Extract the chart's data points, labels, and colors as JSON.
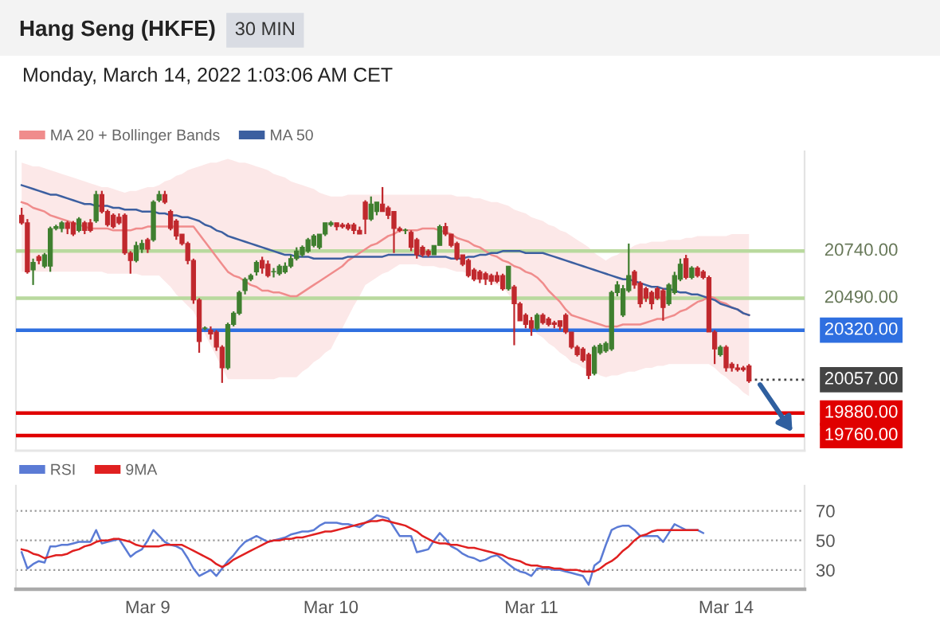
{
  "chart_data": [
    {
      "type": "candlestick",
      "title": "Hang Seng (HKFE)",
      "subtitle": "Monday, March 14, 2022 1:03:06 AM CET",
      "annotations": [
        "30 MIN"
      ],
      "categories": [
        null,
        null,
        null,
        null,
        null,
        null,
        null,
        null,
        null,
        null,
        null,
        null,
        null,
        null,
        null,
        null,
        null,
        null,
        null,
        null,
        null,
        null,
        null,
        null,
        null,
        null,
        null,
        null,
        null,
        null,
        null,
        null,
        null,
        null,
        null,
        null,
        null,
        null,
        null,
        null,
        null,
        null,
        null,
        null,
        null,
        null,
        null,
        null,
        null,
        null,
        null,
        null,
        null,
        null,
        null,
        null,
        null,
        null,
        null,
        null,
        null,
        null,
        null,
        null,
        null,
        null,
        null,
        null,
        null,
        null,
        null,
        null,
        null,
        null,
        null,
        null,
        null,
        null,
        null,
        null,
        null,
        null,
        null,
        null,
        null,
        null,
        null,
        null,
        null,
        null,
        null,
        null,
        null,
        null,
        null,
        null,
        null,
        null,
        null,
        null,
        null,
        null,
        null,
        null,
        null,
        null,
        null,
        null,
        null,
        null,
        null,
        null,
        null,
        null,
        null,
        null,
        null,
        null,
        null,
        null,
        null,
        null,
        null,
        null,
        null,
        null,
        null,
        null
      ],
      "ohlc": [
        [
          20930,
          20970,
          20880,
          20890
        ],
        [
          20890,
          20910,
          20620,
          20630
        ],
        [
          20640,
          20700,
          20560,
          20680
        ],
        [
          20710,
          20720,
          20670,
          20690
        ],
        [
          20660,
          20730,
          20650,
          20720
        ],
        [
          20660,
          20870,
          20630,
          20860
        ],
        [
          20860,
          20880,
          20850,
          20870
        ],
        [
          20860,
          20900,
          20840,
          20890
        ],
        [
          20890,
          20900,
          20830,
          20860
        ],
        [
          20890,
          20900,
          20820,
          20830
        ],
        [
          20850,
          20920,
          20840,
          20910
        ],
        [
          20890,
          20900,
          20830,
          20850
        ],
        [
          20890,
          20910,
          20840,
          20850
        ],
        [
          20900,
          21060,
          20890,
          21040
        ],
        [
          21040,
          21060,
          20940,
          20950
        ],
        [
          20950,
          20960,
          20870,
          20880
        ],
        [
          20930,
          20940,
          20860,
          20870
        ],
        [
          20920,
          20940,
          20880,
          20890
        ],
        [
          20930,
          20940,
          20720,
          20730
        ],
        [
          20730,
          20740,
          20620,
          20690
        ],
        [
          20690,
          20790,
          20680,
          20770
        ],
        [
          20750,
          20800,
          20730,
          20780
        ],
        [
          20800,
          20810,
          20730,
          20750
        ],
        [
          20800,
          21010,
          20790,
          21000
        ],
        [
          21010,
          21060,
          21000,
          21040
        ],
        [
          21040,
          21060,
          20990,
          21000
        ],
        [
          20950,
          20960,
          20850,
          20860
        ],
        [
          20900,
          20910,
          20800,
          20820
        ],
        [
          20830,
          20830,
          20770,
          20780
        ],
        [
          20780,
          20790,
          20670,
          20690
        ],
        [
          20690,
          20700,
          20460,
          20480
        ],
        [
          20480,
          20490,
          20200,
          20260
        ],
        [
          20330,
          20340,
          20320,
          20330
        ],
        [
          20320,
          20340,
          20270,
          20300
        ],
        [
          20310,
          20320,
          20210,
          20230
        ],
        [
          20230,
          20240,
          20040,
          20120
        ],
        [
          20120,
          20360,
          20110,
          20350
        ],
        [
          20350,
          20420,
          20340,
          20410
        ],
        [
          20410,
          20530,
          20400,
          20520
        ],
        [
          20530,
          20600,
          20510,
          20590
        ],
        [
          20590,
          20620,
          20580,
          20610
        ],
        [
          20630,
          20690,
          20610,
          20680
        ],
        [
          20690,
          20710,
          20620,
          20650
        ],
        [
          20670,
          20690,
          20600,
          20610
        ],
        [
          20630,
          20650,
          20600,
          20630
        ],
        [
          20620,
          20670,
          20610,
          20660
        ],
        [
          20630,
          20680,
          20620,
          20660
        ],
        [
          20660,
          20720,
          20650,
          20700
        ],
        [
          20700,
          20760,
          20690,
          20740
        ],
        [
          20720,
          20770,
          20710,
          20760
        ],
        [
          20740,
          20810,
          20730,
          20800
        ],
        [
          20770,
          20830,
          20760,
          20820
        ],
        [
          20760,
          20830,
          20750,
          20830
        ],
        [
          20830,
          20890,
          20820,
          20890
        ],
        [
          20880,
          20900,
          20870,
          20890
        ],
        [
          20890,
          20890,
          20850,
          20870
        ],
        [
          20880,
          20890,
          20860,
          20870
        ],
        [
          20880,
          20890,
          20850,
          20860
        ],
        [
          20880,
          20890,
          20830,
          20850
        ],
        [
          20850,
          20870,
          20830,
          20830
        ],
        [
          21000,
          21010,
          20830,
          20910
        ],
        [
          20910,
          21030,
          20900,
          20990
        ],
        [
          20950,
          21000,
          20930,
          21000
        ],
        [
          20990,
          21080,
          20950,
          20950
        ],
        [
          20970,
          20980,
          20910,
          20930
        ],
        [
          20950,
          20950,
          20730,
          20860
        ],
        [
          20860,
          20870,
          20840,
          20850
        ],
        [
          20850,
          20860,
          20830,
          20850
        ],
        [
          20840,
          20850,
          20740,
          20760
        ],
        [
          20800,
          20810,
          20700,
          20720
        ],
        [
          20760,
          20770,
          20710,
          20720
        ],
        [
          20740,
          20750,
          20710,
          20720
        ],
        [
          20720,
          20770,
          20720,
          20770
        ],
        [
          20770,
          20880,
          20770,
          20870
        ],
        [
          20870,
          20890,
          20820,
          20830
        ],
        [
          20830,
          20830,
          20760,
          20770
        ],
        [
          20780,
          20790,
          20690,
          20700
        ],
        [
          20720,
          20720,
          20660,
          20670
        ],
        [
          20690,
          20700,
          20600,
          20610
        ],
        [
          20640,
          20650,
          20580,
          20590
        ],
        [
          20630,
          20640,
          20570,
          20590
        ],
        [
          20620,
          20630,
          20560,
          20590
        ],
        [
          20610,
          20620,
          20560,
          20580
        ],
        [
          20610,
          20630,
          20570,
          20580
        ],
        [
          20610,
          20620,
          20530,
          20540
        ],
        [
          20540,
          20660,
          20530,
          20660
        ],
        [
          20550,
          20560,
          20240,
          20460
        ],
        [
          20460,
          20470,
          20370,
          20370
        ],
        [
          20400,
          20410,
          20330,
          20350
        ],
        [
          20370,
          20390,
          20290,
          20330
        ],
        [
          20330,
          20410,
          20320,
          20400
        ],
        [
          20400,
          20410,
          20350,
          20360
        ],
        [
          20380,
          20390,
          20340,
          20350
        ],
        [
          20360,
          20370,
          20330,
          20350
        ],
        [
          20370,
          20370,
          20320,
          20340
        ],
        [
          20400,
          20410,
          20300,
          20310
        ],
        [
          20310,
          20310,
          20220,
          20230
        ],
        [
          20230,
          20240,
          20180,
          20190
        ],
        [
          20220,
          20230,
          20150,
          20160
        ],
        [
          20190,
          20200,
          20060,
          20080
        ],
        [
          20090,
          20240,
          20080,
          20230
        ],
        [
          20200,
          20250,
          20190,
          20240
        ],
        [
          20210,
          20260,
          20200,
          20250
        ],
        [
          20220,
          20530,
          20210,
          20520
        ],
        [
          20520,
          20580,
          20500,
          20560
        ],
        [
          20400,
          20560,
          20390,
          20540
        ],
        [
          20530,
          20780,
          20520,
          20610
        ],
        [
          20630,
          20640,
          20540,
          20560
        ],
        [
          20570,
          20580,
          20440,
          20460
        ],
        [
          20540,
          20550,
          20470,
          20490
        ],
        [
          20520,
          20530,
          20430,
          20460
        ],
        [
          20540,
          20550,
          20480,
          20490
        ],
        [
          20530,
          20540,
          20370,
          20440
        ],
        [
          20460,
          20570,
          20450,
          20560
        ],
        [
          20520,
          20630,
          20510,
          20610
        ],
        [
          20590,
          20700,
          20580,
          20670
        ],
        [
          20700,
          20720,
          20590,
          20600
        ],
        [
          20600,
          20660,
          20590,
          20650
        ],
        [
          20650,
          20660,
          20600,
          20610
        ],
        [
          20630,
          20640,
          20590,
          20600
        ],
        [
          20600,
          20610,
          20310,
          20310
        ],
        [
          20310,
          20320,
          20140,
          20220
        ],
        [
          20190,
          20240,
          20180,
          20230
        ],
        [
          20230,
          20240,
          20100,
          20120
        ],
        [
          20140,
          20150,
          20100,
          20120
        ],
        [
          20120,
          20140,
          20100,
          20110
        ],
        [
          20120,
          20130,
          20100,
          20110
        ],
        [
          20130,
          20140,
          20040,
          20050
        ]
      ],
      "colors": [
        "#c0282d",
        "#c0282d",
        "#3f7f2f",
        "#c0282d",
        "#3f7f2f",
        "#3f7f2f",
        "#3f7f2f",
        "#3f7f2f",
        "#c0282d",
        "#c0282d",
        "#3f7f2f",
        "#c0282d",
        "#c0282d",
        "#3f7f2f",
        "#c0282d",
        "#c0282d",
        "#c0282d",
        "#c0282d",
        "#c0282d",
        "#c0282d",
        "#3f7f2f",
        "#3f7f2f",
        "#c0282d",
        "#3f7f2f",
        "#3f7f2f",
        "#c0282d",
        "#c0282d",
        "#c0282d",
        "#c0282d",
        "#c0282d",
        "#c0282d",
        "#c0282d",
        "#3f7f2f",
        "#c0282d",
        "#c0282d",
        "#c0282d",
        "#3f7f2f",
        "#3f7f2f",
        "#3f7f2f",
        "#3f7f2f",
        "#3f7f2f",
        "#3f7f2f",
        "#c0282d",
        "#c0282d",
        "#3f7f2f",
        "#3f7f2f",
        "#3f7f2f",
        "#3f7f2f",
        "#3f7f2f",
        "#3f7f2f",
        "#3f7f2f",
        "#3f7f2f",
        "#3f7f2f",
        "#3f7f2f",
        "#3f7f2f",
        "#c0282d",
        "#c0282d",
        "#c0282d",
        "#c0282d",
        "#c0282d",
        "#c0282d",
        "#3f7f2f",
        "#3f7f2f",
        "#c0282d",
        "#c0282d",
        "#c0282d",
        "#c0282d",
        "#3f7f2f",
        "#c0282d",
        "#c0282d",
        "#c0282d",
        "#c0282d",
        "#3f7f2f",
        "#3f7f2f",
        "#c0282d",
        "#c0282d",
        "#c0282d",
        "#c0282d",
        "#c0282d",
        "#c0282d",
        "#c0282d",
        "#c0282d",
        "#c0282d",
        "#c0282d",
        "#c0282d",
        "#3f7f2f",
        "#c0282d",
        "#c0282d",
        "#c0282d",
        "#c0282d",
        "#3f7f2f",
        "#c0282d",
        "#c0282d",
        "#c0282d",
        "#c0282d",
        "#c0282d",
        "#c0282d",
        "#c0282d",
        "#c0282d",
        "#c0282d",
        "#3f7f2f",
        "#3f7f2f",
        "#3f7f2f",
        "#3f7f2f",
        "#3f7f2f",
        "#3f7f2f",
        "#3f7f2f",
        "#c0282d",
        "#c0282d",
        "#c0282d",
        "#c0282d",
        "#c0282d",
        "#c0282d",
        "#3f7f2f",
        "#3f7f2f",
        "#3f7f2f",
        "#c0282d",
        "#3f7f2f",
        "#c0282d",
        "#c0282d",
        "#c0282d",
        "#c0282d",
        "#3f7f2f",
        "#c0282d",
        "#c0282d",
        "#c0282d",
        "#c0282d",
        "#c0282d"
      ],
      "series": [
        {
          "name": "MA 20 + Bollinger Bands",
          "type": "line",
          "color": "#f08c8c",
          "values": [
            21000,
            20990,
            20970,
            20960,
            20950,
            20930,
            20920,
            20910,
            20900,
            20890,
            20880,
            20870,
            20860,
            20860,
            20860,
            20860,
            20850,
            20850,
            20850,
            20850,
            20860,
            20860,
            20870,
            20870,
            20870,
            20870,
            20870,
            20870,
            20870,
            20870,
            20870,
            20830,
            20790,
            20750,
            20710,
            20670,
            20630,
            20610,
            20600,
            20580,
            20560,
            20550,
            20530,
            20530,
            20520,
            20520,
            20510,
            20500,
            20500,
            20520,
            20540,
            20560,
            20580,
            20600,
            20620,
            20640,
            20660,
            20690,
            20710,
            20730,
            20750,
            20770,
            20780,
            20800,
            20820,
            20830,
            20850,
            20850,
            20850,
            20850,
            20860,
            20860,
            20860,
            20850,
            20840,
            20830,
            20810,
            20800,
            20790,
            20770,
            20760,
            20740,
            20720,
            20710,
            20690,
            20680,
            20660,
            20650,
            20630,
            20620,
            20600,
            20570,
            20530,
            20500,
            20470,
            20430,
            20400,
            20390,
            20380,
            20370,
            20360,
            20350,
            20340,
            20340,
            20340,
            20350,
            20350,
            20350,
            20350,
            20360,
            20370,
            20380,
            20380,
            20390,
            20400,
            20420,
            20430,
            20450,
            20470,
            20480,
            20500,
            20490,
            20470,
            20460,
            20440,
            20430,
            20410,
            20400
          ],
          "lower": [
            20630,
            20630,
            20630,
            20630,
            20630,
            20630,
            20630,
            20630,
            20630,
            20630,
            20630,
            20630,
            20630,
            20630,
            20630,
            20620,
            20620,
            20620,
            20620,
            20620,
            20620,
            20610,
            20610,
            20610,
            20610,
            20580,
            20550,
            20510,
            20480,
            20450,
            20420,
            20360,
            20300,
            20240,
            20180,
            20120,
            20060,
            20060,
            20060,
            20060,
            20060,
            20060,
            20060,
            20060,
            20060,
            20070,
            20070,
            20070,
            20070,
            20100,
            20120,
            20150,
            20170,
            20200,
            20220,
            20280,
            20330,
            20390,
            20450,
            20500,
            20560,
            20580,
            20600,
            20620,
            20630,
            20650,
            20670,
            20670,
            20670,
            20670,
            20660,
            20660,
            20660,
            20650,
            20650,
            20640,
            20630,
            20630,
            20620,
            20610,
            20600,
            20590,
            20570,
            20560,
            20550,
            20510,
            20470,
            20430,
            20380,
            20340,
            20300,
            20280,
            20250,
            20230,
            20200,
            20180,
            20150,
            20140,
            20120,
            20110,
            20100,
            20080,
            20070,
            20080,
            20080,
            20090,
            20100,
            20100,
            20110,
            20120,
            20120,
            20130,
            20130,
            20140,
            20140,
            20140,
            20140,
            20140,
            20140,
            20140,
            20140,
            20120,
            20090,
            20070,
            20040,
            20020,
            19990,
            19970
          ],
          "upper": [
            21210,
            21200,
            21190,
            21190,
            21180,
            21170,
            21160,
            21150,
            21140,
            21130,
            21120,
            21110,
            21100,
            21090,
            21080,
            21080,
            21070,
            21060,
            21050,
            21060,
            21060,
            21070,
            21080,
            21080,
            21090,
            21110,
            21120,
            21140,
            21150,
            21170,
            21180,
            21190,
            21200,
            21210,
            21210,
            21220,
            21230,
            21220,
            21210,
            21210,
            21200,
            21190,
            21180,
            21170,
            21150,
            21140,
            21130,
            21110,
            21100,
            21090,
            21080,
            21070,
            21050,
            21040,
            21030,
            21030,
            21030,
            21040,
            21040,
            21040,
            21040,
            21040,
            21040,
            21040,
            21040,
            21040,
            21040,
            21040,
            21040,
            21040,
            21040,
            21040,
            21040,
            21040,
            21040,
            21040,
            21030,
            21030,
            21030,
            21020,
            21020,
            21010,
            21000,
            21000,
            20990,
            20980,
            20960,
            20950,
            20940,
            20920,
            20910,
            20900,
            20880,
            20870,
            20850,
            20840,
            20820,
            20800,
            20780,
            20760,
            20730,
            20710,
            20690,
            20710,
            20720,
            20740,
            20750,
            20770,
            20780,
            20780,
            20790,
            20790,
            20790,
            20800,
            20800,
            20800,
            20810,
            20810,
            20820,
            20820,
            20820,
            20820,
            20820,
            20820,
            20830,
            20830,
            20830,
            20830
          ]
        },
        {
          "name": "MA 50",
          "type": "line",
          "color": "#3c5fa0",
          "values": [
            21090,
            21080,
            21070,
            21060,
            21050,
            21040,
            21040,
            21030,
            21020,
            21010,
            21000,
            20990,
            20990,
            20980,
            20980,
            20980,
            20970,
            20970,
            20960,
            20960,
            20960,
            20950,
            20950,
            20950,
            20940,
            20940,
            20930,
            20930,
            20920,
            20920,
            20910,
            20900,
            20880,
            20870,
            20850,
            20840,
            20820,
            20810,
            20800,
            20790,
            20780,
            20770,
            20760,
            20750,
            20740,
            20730,
            20720,
            20720,
            20710,
            20710,
            20710,
            20700,
            20700,
            20700,
            20700,
            20700,
            20700,
            20710,
            20710,
            20710,
            20710,
            20710,
            20710,
            20710,
            20720,
            20720,
            20720,
            20720,
            20720,
            20720,
            20710,
            20710,
            20710,
            20710,
            20710,
            20700,
            20700,
            20700,
            20710,
            20710,
            20720,
            20720,
            20730,
            20730,
            20740,
            20740,
            20740,
            20740,
            20730,
            20730,
            20730,
            20730,
            20720,
            20710,
            20700,
            20690,
            20680,
            20670,
            20660,
            20650,
            20640,
            20630,
            20620,
            20610,
            20600,
            20590,
            20590,
            20580,
            20570,
            20560,
            20550,
            20550,
            20540,
            20540,
            20530,
            20520,
            20520,
            20510,
            20510,
            20500,
            20490,
            20480,
            20460,
            20450,
            20440,
            20430,
            20410,
            20400
          ]
        }
      ],
      "ylim": [
        19680,
        21270
      ],
      "legend": "top left",
      "ref_lines": [
        {
          "axis": "y",
          "value": 20740,
          "label": "20740.00",
          "color": "#b9d99e"
        },
        {
          "axis": "y",
          "value": 20490,
          "label": "20490.00",
          "color": "#b9d99e"
        },
        {
          "axis": "y",
          "value": 20320,
          "label": "20320.00",
          "color": "#2f6fe0"
        },
        {
          "axis": "y",
          "value": 20057,
          "label": "20057.00",
          "color": "#444444",
          "line_style": "dotted"
        },
        {
          "axis": "y",
          "value": 19880,
          "label": "19880.00",
          "color": "#e00000"
        },
        {
          "axis": "y",
          "value": 19760,
          "label": "19760.00",
          "color": "#e00000"
        }
      ]
    },
    {
      "type": "line",
      "categories": [
        null,
        null,
        null,
        null,
        null,
        null,
        null,
        null,
        null,
        null,
        null,
        null,
        null,
        null,
        null,
        null,
        null,
        null,
        null,
        null,
        null,
        null,
        "Mar 9",
        null,
        null,
        null,
        null,
        null,
        null,
        null,
        null,
        null,
        null,
        null,
        null,
        null,
        null,
        null,
        null,
        null,
        null,
        null,
        null,
        null,
        null,
        null,
        null,
        null,
        null,
        null,
        null,
        null,
        null,
        null,
        "Mar 10",
        null,
        null,
        null,
        null,
        null,
        null,
        null,
        null,
        null,
        null,
        null,
        null,
        null,
        null,
        null,
        null,
        null,
        null,
        null,
        null,
        null,
        null,
        null,
        null,
        null,
        null,
        null,
        null,
        null,
        null,
        null,
        null,
        null,
        null,
        "Mar 11",
        null,
        null,
        null,
        null,
        null,
        null,
        null,
        null,
        null,
        null,
        null,
        null,
        null,
        null,
        null,
        null,
        null,
        null,
        null,
        null,
        null,
        null,
        null,
        null,
        null,
        null,
        null,
        null,
        null,
        null,
        null,
        null,
        null,
        "Mar 14",
        null,
        null,
        null,
        null
      ],
      "series": [
        {
          "name": "RSI",
          "type": "line",
          "color": "#5b7bd5",
          "values": [
            42,
            31,
            34,
            36,
            35,
            46,
            46,
            47,
            47,
            48,
            49,
            49,
            49,
            57,
            48,
            49,
            50,
            51,
            45,
            39,
            42,
            44,
            50,
            57,
            53,
            49,
            47,
            46,
            44,
            38,
            31,
            26,
            28,
            30,
            26,
            31,
            36,
            40,
            45,
            49,
            51,
            53,
            51,
            49,
            50,
            51,
            52,
            54,
            55,
            56,
            56,
            57,
            60,
            62,
            62,
            62,
            61,
            61,
            60,
            59,
            62,
            64,
            67,
            66,
            65,
            59,
            53,
            53,
            53,
            42,
            43,
            44,
            50,
            55,
            51,
            46,
            44,
            41,
            39,
            38,
            36,
            37,
            39,
            40,
            37,
            34,
            31,
            29,
            28,
            26,
            31,
            31,
            31,
            30,
            30,
            29,
            28,
            27,
            26,
            20,
            33,
            36,
            47,
            57,
            59,
            60,
            60,
            57,
            53,
            53,
            53,
            53,
            49,
            55,
            61,
            59,
            57,
            57,
            57,
            55,
            null,
            null,
            null,
            null,
            null,
            null,
            null,
            null
          ]
        },
        {
          "name": "9MA",
          "type": "line",
          "color": "#e02020",
          "values": [
            44,
            43,
            41,
            40,
            38,
            39,
            40,
            40,
            41,
            43,
            44,
            46,
            47,
            49,
            50,
            50,
            51,
            51,
            50,
            49,
            47,
            46,
            46,
            46,
            46,
            47,
            47,
            47,
            47,
            45,
            43,
            41,
            39,
            37,
            34,
            32,
            34,
            37,
            39,
            41,
            43,
            45,
            47,
            49,
            50,
            50,
            51,
            51,
            52,
            52,
            53,
            54,
            55,
            56,
            56,
            57,
            58,
            59,
            60,
            61,
            62,
            63,
            63,
            64,
            63,
            62,
            61,
            60,
            58,
            56,
            53,
            51,
            49,
            48,
            48,
            47,
            47,
            46,
            45,
            45,
            44,
            43,
            42,
            41,
            40,
            38,
            37,
            36,
            34,
            33,
            33,
            32,
            32,
            31,
            31,
            30,
            30,
            30,
            29,
            29,
            29,
            31,
            34,
            36,
            39,
            43,
            46,
            50,
            53,
            54,
            56,
            57,
            57,
            57,
            57,
            57,
            57,
            57,
            57,
            null,
            null,
            null,
            null,
            null,
            null,
            null,
            null,
            null
          ]
        }
      ],
      "ylim": [
        17,
        87
      ],
      "yticks": [
        30,
        50,
        70
      ],
      "grid": "y",
      "legend": "top left"
    }
  ]
}
